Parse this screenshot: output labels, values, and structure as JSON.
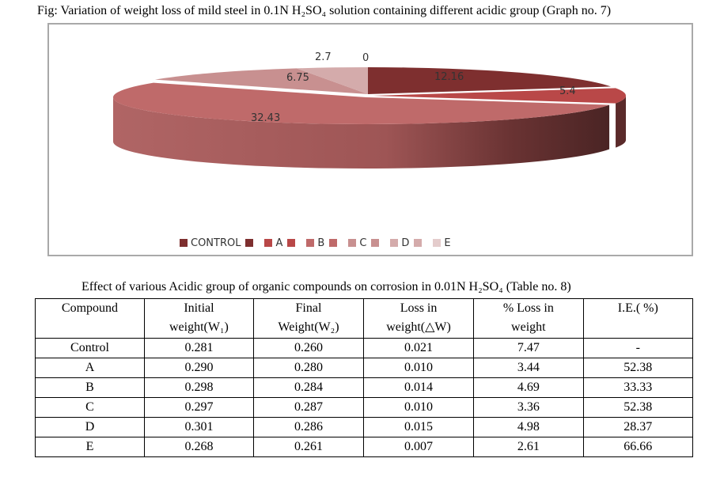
{
  "figure": {
    "caption": "Fig: Variation of weight loss of mild steel in 0.1N H₂SO₄ solution containing different acidic group (Graph no. 7)"
  },
  "chart_data": {
    "type": "pie",
    "title": "",
    "categories": [
      "CONTROL",
      "A",
      "B",
      "C",
      "D",
      "E"
    ],
    "values": [
      12.16,
      5.4,
      32.43,
      6.75,
      2.7,
      0
    ],
    "value_labels": [
      "12.16",
      "5.4",
      "32.43",
      "6.75",
      "2.7",
      "0"
    ],
    "colors": [
      "#7e2f2f",
      "#b94848",
      "#bf6a6a",
      "#c89090",
      "#d4abab",
      "#e4cccc"
    ],
    "style": "3d-exploded",
    "legend_position": "bottom"
  },
  "table": {
    "caption": "Effect of various Acidic group of organic compounds on corrosion in 0.01N H₂SO₄ (Table no. 8)",
    "headers": [
      [
        "Compound",
        ""
      ],
      [
        "Initial",
        "weight(W₁)"
      ],
      [
        "Final",
        "Weight(W₂)"
      ],
      [
        "Loss in",
        "weight(△W)"
      ],
      [
        "% Loss in",
        "weight"
      ],
      [
        "I.E.( %)",
        ""
      ]
    ],
    "rows": [
      [
        "Control",
        "0.281",
        "0.260",
        "0.021",
        "7.47",
        "-"
      ],
      [
        "A",
        "0.290",
        "0.280",
        "0.010",
        "3.44",
        "52.38"
      ],
      [
        "B",
        "0.298",
        "0.284",
        "0.014",
        "4.69",
        "33.33"
      ],
      [
        "C",
        "0.297",
        "0.287",
        "0.010",
        "3.36",
        "52.38"
      ],
      [
        "D",
        "0.301",
        "0.286",
        "0.015",
        "4.98",
        "28.37"
      ],
      [
        "E",
        "0.268",
        "0.261",
        "0.007",
        "2.61",
        "66.66"
      ]
    ]
  }
}
